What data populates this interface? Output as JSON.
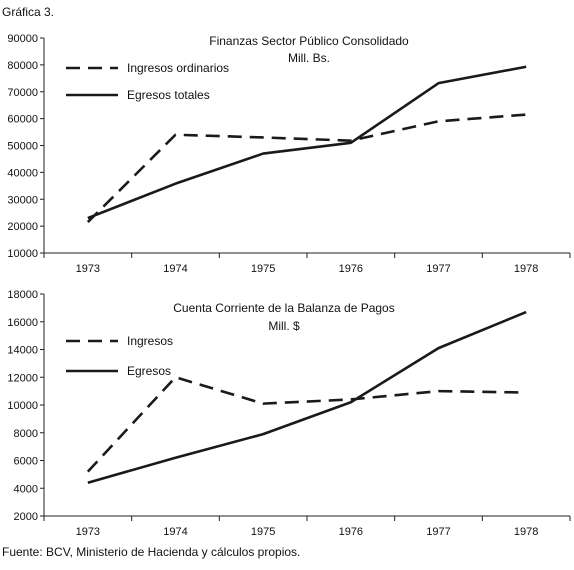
{
  "figure_caption": "Gráfica 3.",
  "source": "Fuente: BCV, Ministerio de Hacienda y cálculos propios.",
  "colors": {
    "line": "#1a1a1a",
    "axis": "#222222",
    "background": "#ffffff"
  },
  "chart_data": [
    {
      "type": "line",
      "title": "Finanzas Sector Público Consolidado",
      "subtitle": "Mill. Bs.",
      "xlabel": "",
      "ylabel": "",
      "categories": [
        "1973",
        "1974",
        "1975",
        "1976",
        "1977",
        "1978"
      ],
      "ylim": [
        10000,
        90000
      ],
      "yticks": [
        10000,
        20000,
        30000,
        40000,
        50000,
        60000,
        70000,
        80000,
        90000
      ],
      "grid": false,
      "legend": "top-left",
      "series": [
        {
          "name": "Ingresos ordinarios",
          "style": "dashed",
          "values": [
            21500,
            54000,
            53000,
            51800,
            59000,
            61500
          ]
        },
        {
          "name": "Egresos totales",
          "style": "solid",
          "values": [
            23000,
            35800,
            47000,
            51000,
            73200,
            79300
          ]
        }
      ]
    },
    {
      "type": "line",
      "title": "Cuenta Corriente de la Balanza de Pagos",
      "subtitle": "Mill. $",
      "xlabel": "",
      "ylabel": "",
      "categories": [
        "1973",
        "1974",
        "1975",
        "1976",
        "1977",
        "1978"
      ],
      "ylim": [
        2000,
        18000
      ],
      "yticks": [
        2000,
        4000,
        6000,
        8000,
        10000,
        12000,
        14000,
        16000,
        18000
      ],
      "grid": false,
      "legend": "top-left",
      "series": [
        {
          "name": "Ingresos",
          "style": "dashed",
          "values": [
            5200,
            12000,
            10100,
            10400,
            11000,
            10900
          ]
        },
        {
          "name": "Egresos",
          "style": "solid",
          "values": [
            4400,
            6200,
            7900,
            10200,
            14100,
            16700
          ]
        }
      ]
    }
  ]
}
